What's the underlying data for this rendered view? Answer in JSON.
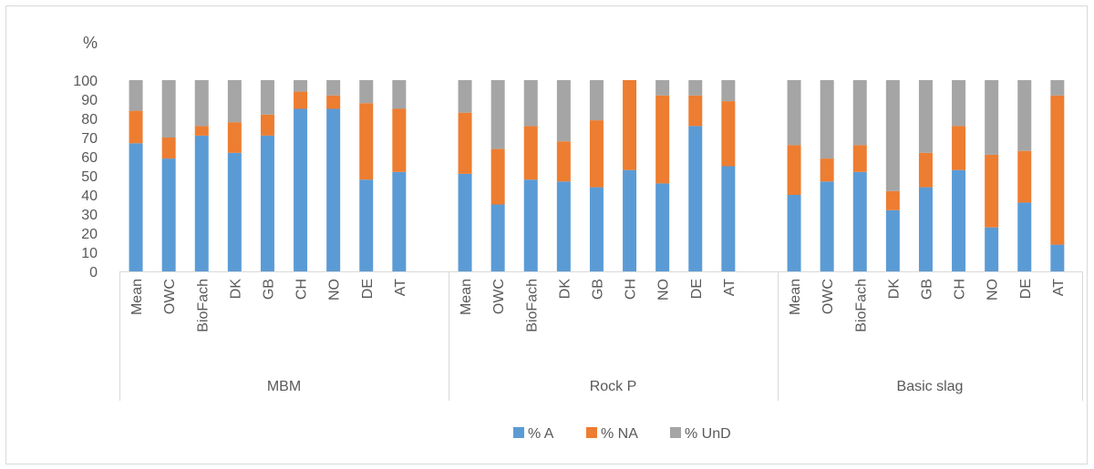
{
  "chart_data": {
    "type": "bar",
    "stacked": true,
    "unit_label": "%",
    "ylim": [
      0,
      100
    ],
    "yticks": [
      0,
      10,
      20,
      30,
      40,
      50,
      60,
      70,
      80,
      90,
      100
    ],
    "grid": false,
    "legend_position": "bottom",
    "groups": [
      {
        "name": "MBM",
        "categories": [
          "Mean",
          "OWC",
          "BioFach",
          "DK",
          "GB",
          "CH",
          "NO",
          "DE",
          "AT"
        ],
        "series_values": {
          "% A": [
            67,
            59,
            71,
            62,
            71,
            85,
            85,
            48,
            52
          ],
          "% NA": [
            17,
            11,
            5,
            16,
            11,
            9,
            7,
            40,
            33
          ],
          "% UnD": [
            16,
            30,
            24,
            22,
            18,
            6,
            8,
            12,
            15
          ]
        }
      },
      {
        "name": "Rock P",
        "categories": [
          "Mean",
          "OWC",
          "BioFach",
          "DK",
          "GB",
          "CH",
          "NO",
          "DE",
          "AT"
        ],
        "series_values": {
          "% A": [
            51,
            35,
            48,
            47,
            44,
            53,
            46,
            76,
            55
          ],
          "% NA": [
            32,
            29,
            28,
            21,
            35,
            47,
            46,
            16,
            34
          ],
          "% UnD": [
            17,
            36,
            24,
            32,
            21,
            0,
            8,
            8,
            11
          ]
        }
      },
      {
        "name": "Basic slag",
        "categories": [
          "Mean",
          "OWC",
          "BioFach",
          "DK",
          "GB",
          "CH",
          "NO",
          "DE",
          "AT"
        ],
        "series_values": {
          "% A": [
            40,
            47,
            52,
            32,
            44,
            53,
            23,
            36,
            14
          ],
          "% NA": [
            26,
            12,
            14,
            10,
            18,
            23,
            38,
            27,
            78
          ],
          "% UnD": [
            34,
            41,
            34,
            58,
            38,
            24,
            39,
            37,
            8
          ]
        }
      }
    ],
    "series": [
      {
        "name": "% A",
        "color": "#5b9bd5"
      },
      {
        "name": "% NA",
        "color": "#ed7d31"
      },
      {
        "name": "% UnD",
        "color": "#a5a5a5"
      }
    ]
  },
  "colors": {
    "axis": "#d9d9d9",
    "text": "#595959"
  }
}
